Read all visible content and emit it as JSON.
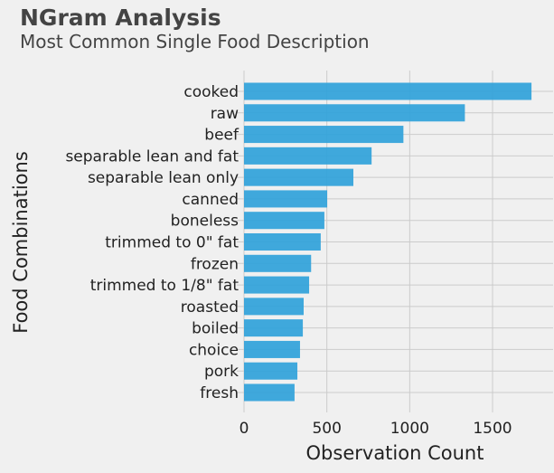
{
  "chart_data": {
    "type": "bar",
    "orientation": "horizontal",
    "title": "NGram Analysis",
    "subtitle": "Most Common Single Food Description",
    "xlabel": "Observation Count",
    "ylabel": "Food Combinations",
    "categories": [
      "cooked",
      "raw",
      "beef",
      "separable lean and fat",
      "separable lean only",
      "canned",
      "boneless",
      "trimmed to 0\" fat",
      "frozen",
      "trimmed to 1/8\" fat",
      "roasted",
      "boiled",
      "choice",
      "pork",
      "fresh"
    ],
    "values": [
      1735,
      1333,
      962,
      770,
      660,
      502,
      485,
      463,
      405,
      393,
      360,
      355,
      338,
      322,
      305
    ],
    "xlim": [
      0,
      1800
    ],
    "xticks": [
      0,
      500,
      1000,
      1500
    ],
    "grid": true,
    "legend": "none",
    "colors": {
      "bar": "#30a2da",
      "background": "#f0f0f0",
      "grid": "#cbcbcb"
    }
  }
}
